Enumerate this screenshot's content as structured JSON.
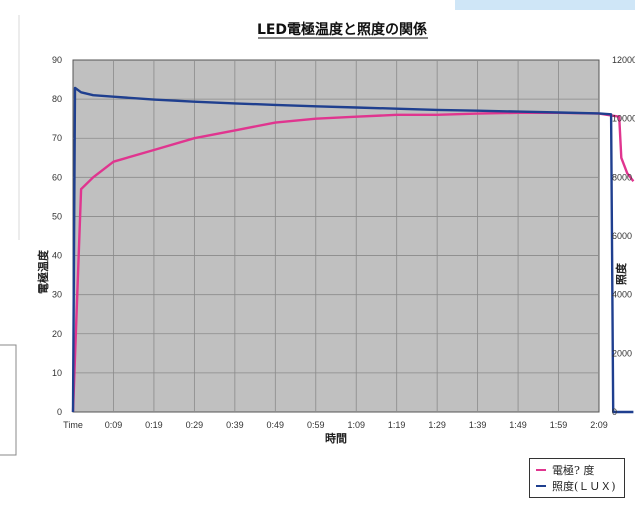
{
  "chart_data": {
    "type": "line",
    "title": "LED電極温度と照度の関係",
    "xlabel": "時間",
    "ylabel_left": "電極温度",
    "ylabel_right": "照度",
    "x_ticks": [
      "Time",
      "0:09",
      "0:19",
      "0:29",
      "0:39",
      "0:49",
      "0:59",
      "1:09",
      "1:19",
      "1:29",
      "1:39",
      "1:49",
      "1:59",
      "2:09"
    ],
    "y_left_ticks": [
      "0",
      "10",
      "20",
      "30",
      "40",
      "50",
      "60",
      "70",
      "80",
      "90"
    ],
    "y_right_ticks": [
      "0",
      "2000",
      "4000",
      "6000",
      "8000",
      "10000",
      "12000"
    ],
    "y_left_range": [
      0,
      90
    ],
    "y_right_range": [
      0,
      12000
    ],
    "grid": true,
    "legend_position": "bottom-right",
    "series": [
      {
        "name": "電極? 度",
        "axis": "left",
        "color": "#e0358f",
        "points": [
          [
            0,
            0
          ],
          [
            0.2,
            57
          ],
          [
            0.5,
            60
          ],
          [
            1,
            64
          ],
          [
            2,
            67
          ],
          [
            3,
            70
          ],
          [
            4,
            72
          ],
          [
            5,
            74
          ],
          [
            6,
            75
          ],
          [
            7,
            75.5
          ],
          [
            8,
            76
          ],
          [
            9,
            76
          ],
          [
            10,
            76.3
          ],
          [
            11,
            76.5
          ],
          [
            12,
            76.5
          ],
          [
            13,
            76.3
          ],
          [
            13.5,
            75.5
          ],
          [
            13.55,
            65
          ],
          [
            13.7,
            61
          ],
          [
            13.85,
            59
          ]
        ]
      },
      {
        "name": "照度(ＬＵＸ)",
        "axis": "right",
        "color": "#1f3f8f",
        "points": [
          [
            0,
            0
          ],
          [
            0.05,
            11050
          ],
          [
            0.2,
            10900
          ],
          [
            0.5,
            10800
          ],
          [
            1,
            10750
          ],
          [
            2,
            10650
          ],
          [
            3,
            10580
          ],
          [
            4,
            10520
          ],
          [
            5,
            10470
          ],
          [
            6,
            10420
          ],
          [
            7,
            10380
          ],
          [
            8,
            10340
          ],
          [
            9,
            10300
          ],
          [
            10,
            10270
          ],
          [
            11,
            10240
          ],
          [
            12,
            10210
          ],
          [
            13,
            10180
          ],
          [
            13.3,
            10150
          ],
          [
            13.35,
            0
          ],
          [
            13.85,
            0
          ]
        ]
      }
    ]
  }
}
